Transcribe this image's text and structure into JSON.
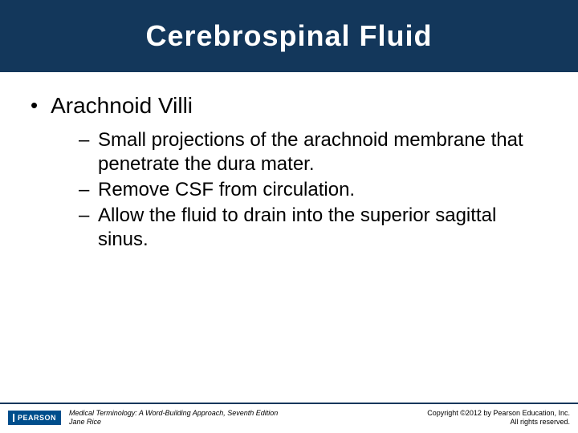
{
  "title": "Cerebrospinal Fluid",
  "main_bullet": "Arachnoid Villi",
  "sub_bullets": [
    "Small projections of the arachnoid membrane that penetrate the dura mater.",
    "Remove CSF from circulation.",
    "Allow the fluid to drain into the superior sagittal sinus."
  ],
  "footer": {
    "logo_text": "PEARSON",
    "book_line1": "Medical Terminology: A Word-Building Approach, Seventh Edition",
    "book_line2": "Jane Rice",
    "copyright_line1": "Copyright ©2012 by Pearson Education, Inc.",
    "copyright_line2": "All rights reserved."
  },
  "colors": {
    "band": "#13375b",
    "background": "#ffffff",
    "text": "#000000",
    "logo_bg": "#004e8c"
  }
}
